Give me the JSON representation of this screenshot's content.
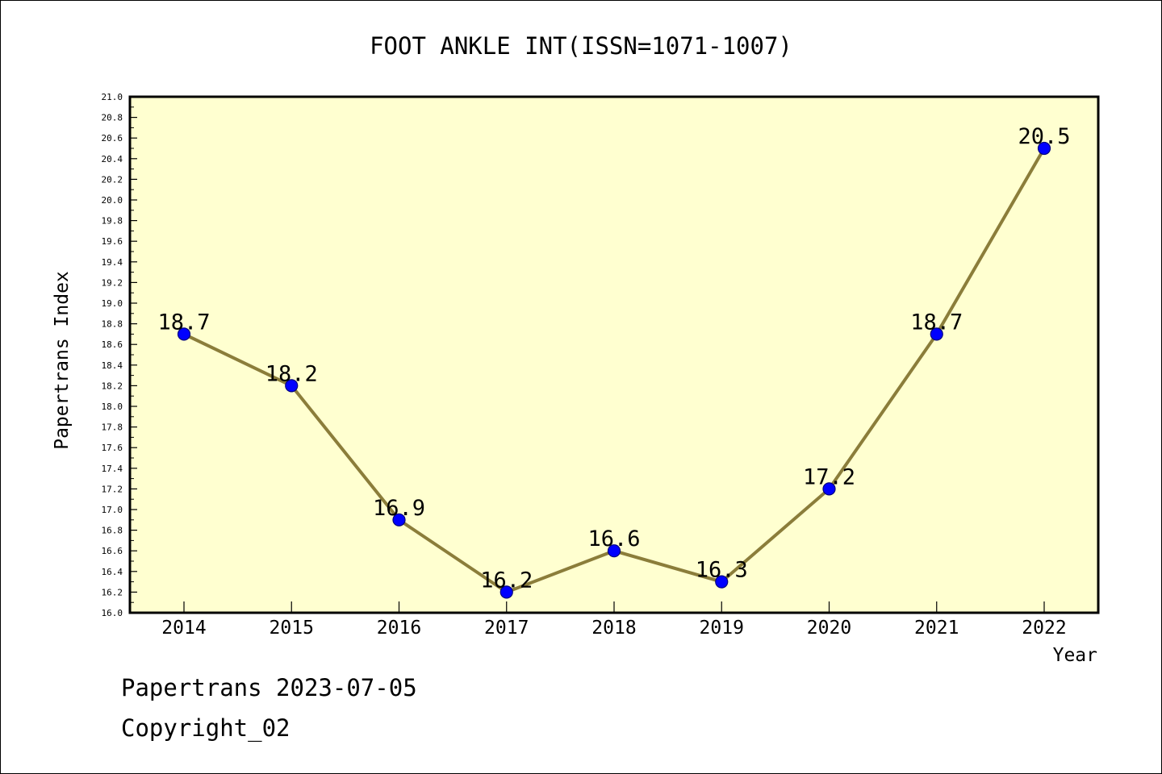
{
  "footer": {
    "line1": "Papertrans 2023-07-05",
    "line2": "Copyright_02"
  },
  "chart_data": {
    "type": "line",
    "title": "FOOT ANKLE INT(ISSN=1071-1007)",
    "xlabel": "Year",
    "ylabel": "Papertrans Index",
    "categories": [
      "2014",
      "2015",
      "2016",
      "2017",
      "2018",
      "2019",
      "2020",
      "2021",
      "2022"
    ],
    "values": [
      18.7,
      18.2,
      16.9,
      16.2,
      16.6,
      16.3,
      17.2,
      18.7,
      20.5
    ],
    "data_labels": [
      "18.7",
      "18.2",
      "16.9",
      "16.2",
      "16.6",
      "16.3",
      "17.2",
      "18.7",
      "20.5"
    ],
    "ylim": [
      16.0,
      21.0
    ],
    "yticks": [
      "16.0",
      "16.2",
      "16.4",
      "16.6",
      "16.8",
      "17.0",
      "17.2",
      "17.4",
      "17.6",
      "17.8",
      "18.0",
      "18.2",
      "18.4",
      "18.6",
      "18.8",
      "19.0",
      "19.2",
      "19.4",
      "19.6",
      "19.8",
      "20.0",
      "20.2",
      "20.4",
      "20.6",
      "20.8",
      "21.0"
    ],
    "grid": false,
    "legend": "none",
    "colors": {
      "plot_background": "#ffffd0",
      "line": "#8b7d3a",
      "marker": "#0000ff",
      "marker_edge": "#000080"
    }
  }
}
